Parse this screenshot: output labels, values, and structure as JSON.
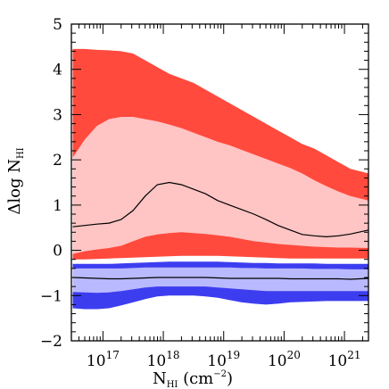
{
  "chart_data": {
    "type": "area",
    "x_scale": "log",
    "xlim": [
      30000000000000000,
      2500000000000000000000
    ],
    "ylim": [
      -2,
      5
    ],
    "grid": false,
    "legend": "none",
    "xlabel": {
      "prefix": "N",
      "sub": "HI",
      "suffix": " (cm",
      "sup": "−2",
      "end": ")"
    },
    "ylabel": {
      "prefix": "Δlog N",
      "sub": "HI"
    },
    "x_tick_labels": [
      {
        "x": 100000000000000000,
        "base": "10",
        "exp": "17"
      },
      {
        "x": 1000000000000000000,
        "base": "10",
        "exp": "18"
      },
      {
        "x": 10000000000000000000,
        "base": "10",
        "exp": "19"
      },
      {
        "x": 100000000000000000000,
        "base": "10",
        "exp": "20"
      },
      {
        "x": 1000000000000000000000,
        "base": "10",
        "exp": "21"
      }
    ],
    "y_tick_labels": [
      {
        "y": -2,
        "label": "−2"
      },
      {
        "y": -1,
        "label": "−1"
      },
      {
        "y": 0,
        "label": "0"
      },
      {
        "y": 1,
        "label": "1"
      },
      {
        "y": 2,
        "label": "2"
      },
      {
        "y": 3,
        "label": "3"
      },
      {
        "y": 4,
        "label": "4"
      },
      {
        "y": 5,
        "label": "5"
      }
    ],
    "colors": {
      "red_outer": "#ff4a3d",
      "red_inner": "#ffc4c4",
      "blue_outer": "#3d3df0",
      "blue_inner": "#b9b9ff",
      "median": "#000000"
    },
    "log_x": [
      16.5,
      16.7,
      16.9,
      17.1,
      17.3,
      17.5,
      17.7,
      17.9,
      18.1,
      18.3,
      18.5,
      18.7,
      18.9,
      19.1,
      19.3,
      19.5,
      19.7,
      19.9,
      20.1,
      20.3,
      20.5,
      20.7,
      20.9,
      21.1,
      21.4
    ],
    "series": [
      {
        "group": "red",
        "outer_upper": [
          4.45,
          4.45,
          4.43,
          4.42,
          4.4,
          4.35,
          4.2,
          4.05,
          3.9,
          3.8,
          3.7,
          3.55,
          3.4,
          3.25,
          3.1,
          2.95,
          2.8,
          2.65,
          2.5,
          2.35,
          2.25,
          2.1,
          1.95,
          1.8,
          1.7
        ],
        "inner_upper": [
          2.05,
          2.45,
          2.75,
          2.9,
          2.95,
          2.95,
          2.9,
          2.85,
          2.78,
          2.7,
          2.6,
          2.5,
          2.4,
          2.32,
          2.22,
          2.12,
          2.02,
          1.92,
          1.82,
          1.7,
          1.55,
          1.42,
          1.3,
          1.2,
          1.1
        ],
        "median": [
          0.52,
          0.55,
          0.58,
          0.6,
          0.68,
          0.88,
          1.2,
          1.45,
          1.5,
          1.45,
          1.35,
          1.25,
          1.1,
          1.0,
          0.9,
          0.8,
          0.68,
          0.55,
          0.45,
          0.35,
          0.32,
          0.3,
          0.32,
          0.36,
          0.45
        ],
        "inner_lower": [
          -0.08,
          -0.02,
          0.02,
          0.05,
          0.1,
          0.2,
          0.3,
          0.35,
          0.38,
          0.4,
          0.38,
          0.36,
          0.33,
          0.3,
          0.25,
          0.2,
          0.17,
          0.14,
          0.12,
          0.1,
          0.08,
          0.07,
          0.06,
          0.06,
          0.05
        ],
        "outer_lower": [
          -0.2,
          -0.2,
          -0.19,
          -0.18,
          -0.17,
          -0.16,
          -0.15,
          -0.14,
          -0.13,
          -0.12,
          -0.12,
          -0.12,
          -0.12,
          -0.13,
          -0.14,
          -0.15,
          -0.16,
          -0.17,
          -0.18,
          -0.18,
          -0.18,
          -0.18,
          -0.18,
          -0.18,
          -0.18
        ]
      },
      {
        "group": "blue",
        "outer_upper": [
          -0.3,
          -0.3,
          -0.3,
          -0.3,
          -0.29,
          -0.28,
          -0.27,
          -0.26,
          -0.25,
          -0.25,
          -0.25,
          -0.25,
          -0.25,
          -0.26,
          -0.27,
          -0.28,
          -0.28,
          -0.29,
          -0.29,
          -0.29,
          -0.29,
          -0.3,
          -0.3,
          -0.3,
          -0.3
        ],
        "inner_upper": [
          -0.4,
          -0.4,
          -0.4,
          -0.4,
          -0.4,
          -0.39,
          -0.38,
          -0.38,
          -0.38,
          -0.38,
          -0.38,
          -0.38,
          -0.38,
          -0.38,
          -0.39,
          -0.39,
          -0.4,
          -0.4,
          -0.4,
          -0.4,
          -0.41,
          -0.41,
          -0.41,
          -0.42,
          -0.42
        ],
        "median": [
          -0.6,
          -0.61,
          -0.62,
          -0.63,
          -0.63,
          -0.62,
          -0.61,
          -0.6,
          -0.6,
          -0.6,
          -0.6,
          -0.6,
          -0.61,
          -0.62,
          -0.62,
          -0.62,
          -0.62,
          -0.62,
          -0.63,
          -0.63,
          -0.63,
          -0.63,
          -0.63,
          -0.64,
          -0.62
        ],
        "inner_lower": [
          -0.92,
          -0.93,
          -0.94,
          -0.93,
          -0.9,
          -0.86,
          -0.82,
          -0.8,
          -0.8,
          -0.8,
          -0.8,
          -0.8,
          -0.82,
          -0.84,
          -0.86,
          -0.88,
          -0.9,
          -0.9,
          -0.9,
          -0.9,
          -0.9,
          -0.9,
          -0.9,
          -0.9,
          -0.9
        ],
        "outer_lower": [
          -1.28,
          -1.3,
          -1.3,
          -1.28,
          -1.22,
          -1.15,
          -1.08,
          -1.02,
          -1.0,
          -1.0,
          -1.0,
          -1.02,
          -1.05,
          -1.1,
          -1.15,
          -1.18,
          -1.2,
          -1.18,
          -1.15,
          -1.14,
          -1.13,
          -1.12,
          -1.12,
          -1.12,
          -1.12
        ]
      }
    ]
  }
}
